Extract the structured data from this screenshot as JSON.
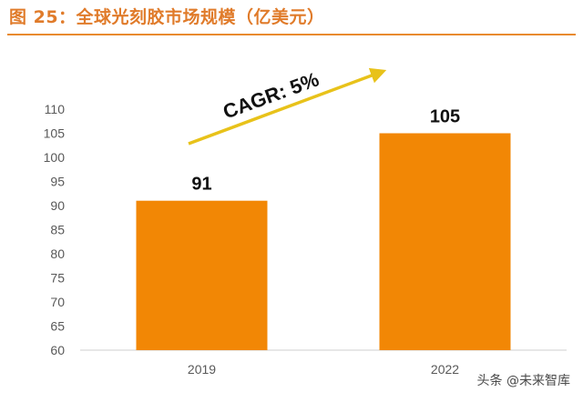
{
  "figure": {
    "title": "图 25：全球光刻胶市场规模（亿美元）"
  },
  "watermark": "头条 @未来智库",
  "colors": {
    "accent": "#e98a2e",
    "bar": "#f28705",
    "arrow": "#e8c21a",
    "axis": "#cfcfcf",
    "tick_text": "#595959",
    "label_text": "#111111"
  },
  "chart_data": {
    "type": "bar",
    "title": "全球光刻胶市场规模（亿美元）",
    "categories": [
      "2019",
      "2022"
    ],
    "values": [
      91,
      105
    ],
    "data_labels": [
      "91",
      "105"
    ],
    "ylim": [
      60,
      110
    ],
    "yticks": [
      60,
      65,
      70,
      75,
      80,
      85,
      90,
      95,
      100,
      105,
      110
    ],
    "grid": false,
    "xlabel": "",
    "ylabel": "",
    "annotation": {
      "text": "CAGR: 5%",
      "type": "arrow"
    }
  }
}
